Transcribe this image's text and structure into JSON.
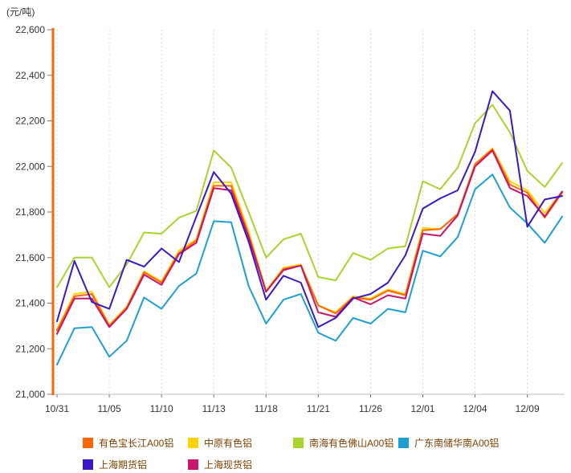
{
  "title": "(元/吨)",
  "axis": {
    "y_tick_labels": [
      "22,600",
      "22,400",
      "22,200",
      "22,000",
      "21,800",
      "21,600",
      "21,400",
      "21,200",
      "21,000"
    ],
    "x_tick_labels": [
      "10/31",
      "11/05",
      "11/10",
      "11/13",
      "11/18",
      "11/21",
      "11/26",
      "12/01",
      "12/04",
      "12/09"
    ],
    "x_tick_indices": [
      0,
      3,
      6,
      9,
      12,
      15,
      18,
      21,
      24,
      27
    ]
  },
  "colors": {
    "y_axis": "#FF6600",
    "x_axis": "#BFBFBF",
    "grid": "#D9D9D9",
    "tick": "#777777",
    "axis_label": "#333333",
    "legend_text": "#804000"
  },
  "chart_data": {
    "type": "line",
    "title": "(元/吨)",
    "ylabel": "元/吨",
    "ylim": [
      21000,
      22600
    ],
    "y_step": 200,
    "n_points": 30,
    "categories": [
      "10/31",
      "11/05",
      "11/10",
      "11/13",
      "11/18",
      "11/21",
      "11/26",
      "12/01",
      "12/04",
      "12/09"
    ],
    "category_point_indices": [
      0,
      3,
      6,
      9,
      12,
      15,
      18,
      21,
      24,
      27
    ],
    "grid": "vertical-dotted",
    "legend_position": "bottom",
    "series": [
      {
        "name": "有色宝长江A00铝",
        "color": "#FF6600",
        "values": [
          21280,
          21430,
          21440,
          21300,
          21380,
          21535,
          21490,
          21620,
          21675,
          21915,
          21915,
          21700,
          21450,
          21550,
          21565,
          21390,
          21355,
          21425,
          21415,
          21455,
          21435,
          21720,
          21725,
          21790,
          22010,
          22075,
          21920,
          21885,
          21775,
          21885
        ]
      },
      {
        "name": "中原有色铝",
        "color": "#FFD200",
        "values": [
          21285,
          21440,
          21450,
          21305,
          21385,
          21540,
          21495,
          21630,
          21680,
          21930,
          21930,
          21715,
          21455,
          21555,
          21570,
          21390,
          21360,
          21430,
          21420,
          21460,
          21440,
          21730,
          21725,
          21790,
          22010,
          22080,
          21935,
          21895,
          21795,
          21890
        ]
      },
      {
        "name": "南海有色佛山A00铝",
        "color": "#A8D42D",
        "values": [
          21470,
          21600,
          21600,
          21470,
          21570,
          21710,
          21705,
          21775,
          21805,
          22070,
          21995,
          21800,
          21600,
          21680,
          21705,
          21515,
          21500,
          21620,
          21590,
          21640,
          21650,
          21935,
          21900,
          21995,
          22190,
          22270,
          22150,
          21980,
          21910,
          22015
        ]
      },
      {
        "name": "广东南储华南A00铝",
        "color": "#1E9FD4",
        "values": [
          21130,
          21290,
          21295,
          21165,
          21235,
          21425,
          21375,
          21475,
          21530,
          21760,
          21755,
          21475,
          21310,
          21415,
          21440,
          21270,
          21235,
          21335,
          21310,
          21375,
          21360,
          21630,
          21605,
          21690,
          21900,
          21965,
          21820,
          21750,
          21665,
          21780
        ]
      },
      {
        "name": "上海期货铝",
        "color": "#3A18C8",
        "values": [
          21320,
          21585,
          21405,
          21375,
          21590,
          21560,
          21640,
          21580,
          21780,
          21975,
          21880,
          21670,
          21415,
          21520,
          21490,
          21295,
          21335,
          21420,
          21440,
          21490,
          21610,
          21815,
          21860,
          21895,
          22065,
          22330,
          22245,
          21735,
          21855,
          21870
        ]
      },
      {
        "name": "上海现货铝",
        "color": "#C9146E",
        "values": [
          21265,
          21420,
          21420,
          21295,
          21375,
          21525,
          21480,
          21615,
          21665,
          21905,
          21895,
          21690,
          21450,
          21545,
          21565,
          21360,
          21340,
          21425,
          21395,
          21435,
          21420,
          21705,
          21695,
          21785,
          22000,
          22070,
          21905,
          21870,
          21780,
          21890
        ]
      }
    ],
    "plot_order": [
      2,
      1,
      0,
      5,
      3,
      4
    ],
    "legend_rows": [
      [
        0,
        1,
        2,
        3
      ],
      [
        4,
        5
      ]
    ]
  }
}
